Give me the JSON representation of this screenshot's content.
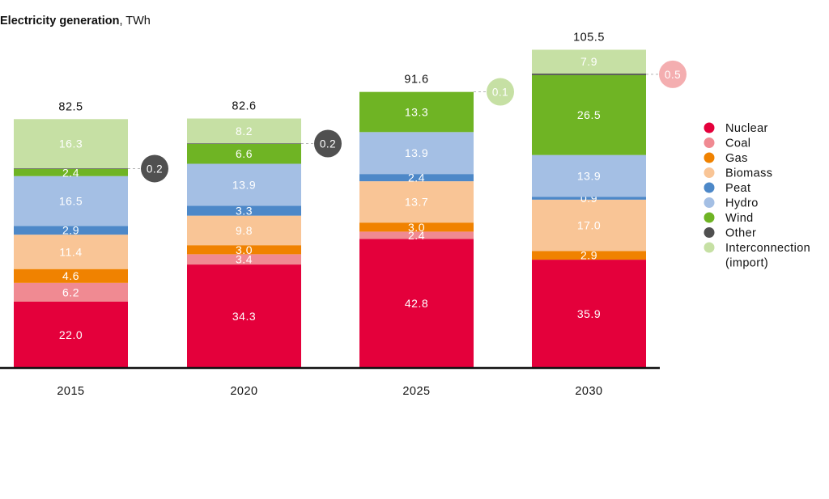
{
  "chart_data": {
    "type": "bar",
    "stacked": true,
    "title": "Electricity generation",
    "unit": "TWh",
    "title_separator": ", ",
    "categories": [
      "2015",
      "2020",
      "2025",
      "2030"
    ],
    "totals": [
      "82.5",
      "82.6",
      "91.6",
      "105.5"
    ],
    "ylim": [
      0,
      110
    ],
    "legend_position": "right",
    "series": [
      {
        "name": "Nuclear",
        "color": "#e4003b",
        "values": [
          22.0,
          34.3,
          42.8,
          35.9
        ],
        "labels": [
          "22.0",
          "34.3",
          "42.8",
          "35.9"
        ]
      },
      {
        "name": "Coal",
        "color": "#f08a92",
        "values": [
          6.2,
          3.4,
          2.4,
          0
        ],
        "labels": [
          "6.2",
          "3.4",
          "2.4",
          ""
        ]
      },
      {
        "name": "Gas",
        "color": "#f08200",
        "values": [
          4.6,
          3.0,
          3.0,
          2.9
        ],
        "labels": [
          "4.6",
          "3.0",
          "3.0",
          "2.9"
        ]
      },
      {
        "name": "Biomass",
        "color": "#f9c596",
        "values": [
          11.4,
          9.8,
          13.7,
          17.0
        ],
        "labels": [
          "11.4",
          "9.8",
          "13.7",
          "17.0"
        ]
      },
      {
        "name": "Peat",
        "color": "#4d88c8",
        "values": [
          2.9,
          3.3,
          2.4,
          0.9
        ],
        "labels": [
          "2.9",
          "3.3",
          "2.4",
          "0.9"
        ]
      },
      {
        "name": "Hydro",
        "color": "#a4bfe4",
        "values": [
          16.5,
          13.9,
          13.9,
          13.9
        ],
        "labels": [
          "16.5",
          "13.9",
          "13.9",
          "13.9"
        ]
      },
      {
        "name": "Wind",
        "color": "#6fb424",
        "values": [
          2.4,
          6.6,
          13.3,
          26.5
        ],
        "labels": [
          "2.4",
          "6.6",
          "13.3",
          "26.5"
        ]
      },
      {
        "name": "Other",
        "color": "#505050",
        "values": [
          0.2,
          0.2,
          0,
          0.5
        ],
        "labels": [
          "",
          "",
          "",
          ""
        ]
      },
      {
        "name": "Interconnection (import)",
        "legend_lines": [
          "Interconnection",
          "(import)"
        ],
        "color": "#c6e0a4",
        "values": [
          16.3,
          8.2,
          0.1,
          7.9
        ],
        "labels": [
          "16.3",
          "8.2",
          "",
          "7.9"
        ]
      }
    ],
    "callouts": [
      {
        "category": "2015",
        "series": "Other",
        "label": "0.2",
        "color": "#505050"
      },
      {
        "category": "2020",
        "series": "Other",
        "label": "0.2",
        "color": "#505050"
      },
      {
        "category": "2025",
        "series": "Interconnection (import)",
        "label": "0.1",
        "color": "#c6e0a4"
      },
      {
        "category": "2030",
        "series": "Other",
        "label": "0.5",
        "color": "#f4aeb0"
      }
    ]
  }
}
